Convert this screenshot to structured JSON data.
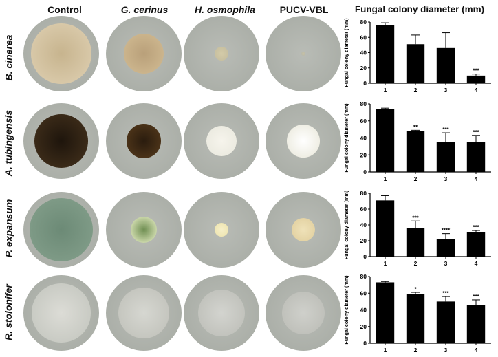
{
  "figure": {
    "columns": [
      "Control",
      "G. cerinus",
      "H. osmophila",
      "PUCV-VBL",
      "Fungal colony diameter (mm)"
    ],
    "rows": [
      {
        "label": "B. cinerea",
        "plates": [
          {
            "colony_color": "#d8c8a8",
            "center_color": "#c7b48e",
            "colony_fraction": 0.92
          },
          {
            "colony_color": "#cbb48c",
            "center_color": "#b9a07a",
            "colony_fraction": 0.62
          },
          {
            "colony_color": "#c8c0a0",
            "center_color": "#d4cba8",
            "colony_fraction": 0.22
          },
          {
            "colony_color": "#b9b9a9",
            "center_color": "#c9c2a6",
            "colony_fraction": 0.06
          }
        ]
      },
      {
        "label": "A. tubingensis",
        "plates": [
          {
            "colony_color": "#3a2a18",
            "center_color": "#1e150c",
            "colony_fraction": 0.82
          },
          {
            "colony_color": "#4a3218",
            "center_color": "#2a1c0e",
            "colony_fraction": 0.52
          },
          {
            "colony_color": "#ecebe1",
            "center_color": "#f6f4ec",
            "colony_fraction": 0.46
          },
          {
            "colony_color": "#efeee4",
            "center_color": "#ffffff",
            "colony_fraction": 0.5
          }
        ]
      },
      {
        "label": "P. expansum",
        "plates": [
          {
            "colony_color": "#7e9a86",
            "center_color": "#6c8a76",
            "colony_fraction": 0.98
          },
          {
            "colony_color": "#c9d6a8",
            "center_color": "#6f8e52",
            "colony_fraction": 0.4
          },
          {
            "colony_color": "#efe6b4",
            "center_color": "#f6efc8",
            "colony_fraction": 0.22
          },
          {
            "colony_color": "#e4d3a4",
            "center_color": "#efe2b9",
            "colony_fraction": 0.36
          }
        ]
      },
      {
        "label": "R. stolonifer",
        "plates": [
          {
            "colony_color": "#c9cbc4",
            "center_color": "#dcdcd6",
            "colony_fraction": 0.9
          },
          {
            "colony_color": "#c5c6bf",
            "center_color": "#d6d7d1",
            "colony_fraction": 0.78
          },
          {
            "colony_color": "#c2c3bd",
            "center_color": "#d3d4cf",
            "colony_fraction": 0.72
          },
          {
            "colony_color": "#c0c1bb",
            "center_color": "#cfd0cb",
            "colony_fraction": 0.66
          }
        ]
      }
    ],
    "colors": {
      "dish_rim": "#4c4f4f",
      "agar": "#b9bcb6",
      "bar": "#000000"
    }
  },
  "chart_data": [
    {
      "type": "bar",
      "ylabel": "Fungal colony diameter (mm)",
      "categories": [
        "1",
        "2",
        "3",
        "4"
      ],
      "values": [
        76,
        51,
        46,
        10
      ],
      "errors": [
        3,
        12,
        20,
        2
      ],
      "significance": [
        "",
        "",
        "",
        "***"
      ],
      "ylim": [
        0,
        80
      ],
      "yticks": [
        "0",
        "20",
        "40",
        "60",
        "80"
      ]
    },
    {
      "type": "bar",
      "ylabel": "Fungal colony diameter (mm)",
      "categories": [
        "1",
        "2",
        "3",
        "4"
      ],
      "values": [
        74,
        48,
        35,
        35
      ],
      "errors": [
        1,
        1,
        11,
        8
      ],
      "significance": [
        "",
        "**",
        "***",
        "***"
      ],
      "ylim": [
        0,
        80
      ],
      "yticks": [
        "0",
        "20",
        "40",
        "60",
        "80"
      ]
    },
    {
      "type": "bar",
      "ylabel": "Fungal colony diameter (mm)",
      "categories": [
        "1",
        "2",
        "3",
        "4"
      ],
      "values": [
        71,
        36,
        22,
        31
      ],
      "errors": [
        6,
        9,
        7,
        2
      ],
      "significance": [
        "",
        "***",
        "****",
        "***"
      ],
      "ylim": [
        0,
        80
      ],
      "yticks": [
        "0",
        "20",
        "40",
        "60",
        "80"
      ]
    },
    {
      "type": "bar",
      "ylabel": "Fungal colony diameter (mm)",
      "categories": [
        "1",
        "2",
        "3",
        "4"
      ],
      "values": [
        73,
        59,
        50,
        46
      ],
      "errors": [
        1,
        2,
        6,
        6
      ],
      "significance": [
        "",
        "*",
        "***",
        "***"
      ],
      "ylim": [
        0,
        80
      ],
      "yticks": [
        "0",
        "20",
        "40",
        "60",
        "80"
      ]
    }
  ]
}
